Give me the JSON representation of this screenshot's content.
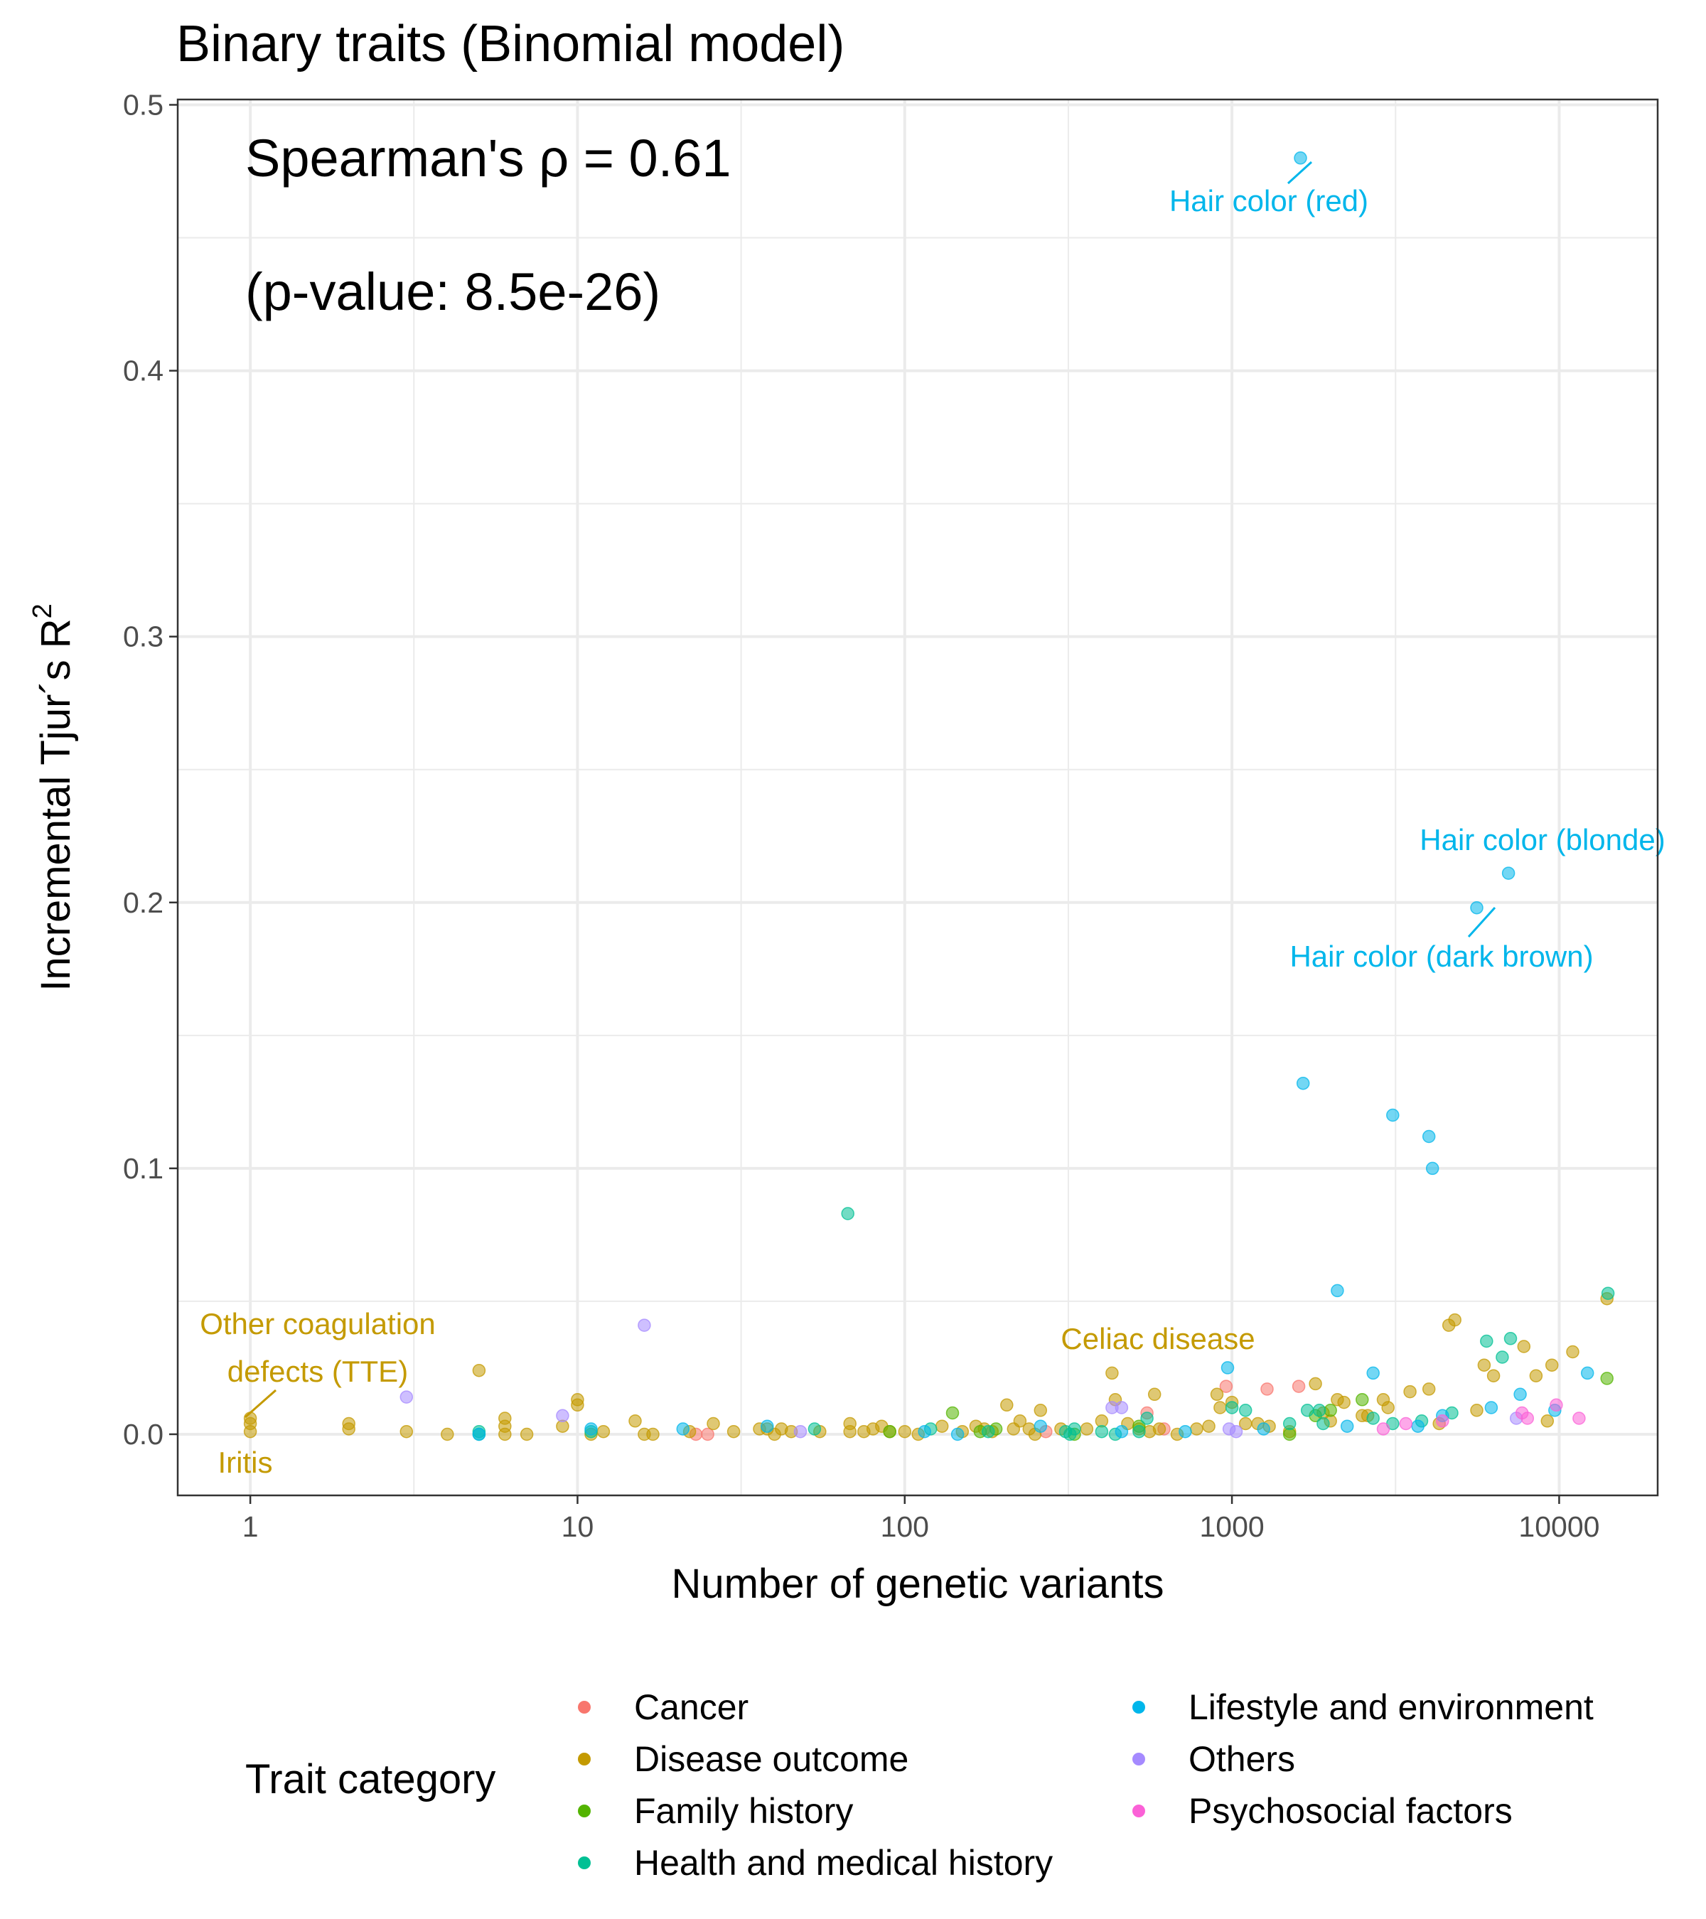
{
  "chart_data": {
    "type": "scatter",
    "title": "Binary traits (Binomial model)",
    "xlabel": "Number of genetic variants",
    "ylabel": "Incremental Tjur´s R",
    "ylabel_superscript": "2",
    "x_scale": "log10",
    "xlim": [
      0.6,
      20000
    ],
    "ylim": [
      -0.023,
      0.502
    ],
    "x_ticks": [
      1,
      10,
      100,
      1000,
      10000
    ],
    "x_tick_labels": [
      "1",
      "10",
      "100",
      "1000",
      "10000"
    ],
    "y_ticks": [
      0,
      0.1,
      0.2,
      0.3,
      0.4,
      0.5
    ],
    "y_tick_labels": [
      "0.0",
      "0.1",
      "0.2",
      "0.3",
      "0.4",
      "0.5"
    ],
    "grid": true,
    "stats": {
      "line1": "Spearman's ρ = 0.61",
      "line2": "(p-value: 8.5e-26)"
    },
    "legend": {
      "title": "Trait category",
      "placement": "bottom"
    },
    "series": [
      {
        "name": "Cancer",
        "color": "#F8766D",
        "points": [
          [
            23,
            0.0
          ],
          [
            25,
            0.0
          ],
          [
            270,
            0.001
          ],
          [
            550,
            0.008
          ],
          [
            620,
            0.002
          ],
          [
            960,
            0.018
          ],
          [
            1280,
            0.017
          ],
          [
            1600,
            0.018
          ]
        ]
      },
      {
        "name": "Disease outcome",
        "color": "#C49A00",
        "points": [
          [
            1,
            0.006
          ],
          [
            1,
            0.004
          ],
          [
            1,
            0.001
          ],
          [
            2,
            0.004
          ],
          [
            2,
            0.002
          ],
          [
            3,
            0.001
          ],
          [
            4,
            0.0
          ],
          [
            5,
            0.024
          ],
          [
            6,
            0.006
          ],
          [
            6,
            0.003
          ],
          [
            6,
            0.0
          ],
          [
            7,
            0.0
          ],
          [
            9,
            0.003
          ],
          [
            10,
            0.013
          ],
          [
            10,
            0.011
          ],
          [
            11,
            0.0
          ],
          [
            12,
            0.001
          ],
          [
            15,
            0.005
          ],
          [
            16,
            0.0
          ],
          [
            17,
            0.0
          ],
          [
            22,
            0.001
          ],
          [
            26,
            0.004
          ],
          [
            30,
            0.001
          ],
          [
            36,
            0.002
          ],
          [
            38,
            0.002
          ],
          [
            40,
            0.0
          ],
          [
            42,
            0.002
          ],
          [
            45,
            0.001
          ],
          [
            55,
            0.001
          ],
          [
            68,
            0.004
          ],
          [
            68,
            0.001
          ],
          [
            75,
            0.001
          ],
          [
            80,
            0.002
          ],
          [
            85,
            0.003
          ],
          [
            90,
            0.001
          ],
          [
            100,
            0.001
          ],
          [
            110,
            0.0
          ],
          [
            130,
            0.003
          ],
          [
            150,
            0.001
          ],
          [
            165,
            0.003
          ],
          [
            175,
            0.002
          ],
          [
            185,
            0.001
          ],
          [
            205,
            0.011
          ],
          [
            215,
            0.002
          ],
          [
            225,
            0.005
          ],
          [
            240,
            0.002
          ],
          [
            250,
            0.0
          ],
          [
            260,
            0.009
          ],
          [
            300,
            0.002
          ],
          [
            360,
            0.002
          ],
          [
            400,
            0.005
          ],
          [
            430,
            0.023
          ],
          [
            440,
            0.013
          ],
          [
            480,
            0.004
          ],
          [
            520,
            0.002
          ],
          [
            560,
            0.001
          ],
          [
            580,
            0.015
          ],
          [
            600,
            0.002
          ],
          [
            680,
            0.0
          ],
          [
            780,
            0.002
          ],
          [
            850,
            0.003
          ],
          [
            900,
            0.015
          ],
          [
            920,
            0.01
          ],
          [
            1000,
            0.012
          ],
          [
            1100,
            0.004
          ],
          [
            1200,
            0.004
          ],
          [
            1300,
            0.003
          ],
          [
            1500,
            0.001
          ],
          [
            1800,
            0.019
          ],
          [
            1900,
            0.008
          ],
          [
            2000,
            0.005
          ],
          [
            2100,
            0.013
          ],
          [
            2200,
            0.012
          ],
          [
            2500,
            0.007
          ],
          [
            2600,
            0.007
          ],
          [
            2900,
            0.013
          ],
          [
            3000,
            0.01
          ],
          [
            3500,
            0.016
          ],
          [
            4000,
            0.017
          ],
          [
            4300,
            0.004
          ],
          [
            4600,
            0.041
          ],
          [
            4800,
            0.043
          ],
          [
            5600,
            0.009
          ],
          [
            5900,
            0.026
          ],
          [
            6300,
            0.022
          ],
          [
            7800,
            0.033
          ],
          [
            8500,
            0.022
          ],
          [
            9200,
            0.005
          ],
          [
            9500,
            0.026
          ],
          [
            11000,
            0.031
          ],
          [
            14000,
            0.051
          ]
        ]
      },
      {
        "name": "Family history",
        "color": "#53B400",
        "points": [
          [
            90,
            0.001
          ],
          [
            140,
            0.008
          ],
          [
            170,
            0.001
          ],
          [
            190,
            0.002
          ],
          [
            330,
            0.0
          ],
          [
            520,
            0.003
          ],
          [
            1500,
            0.0
          ],
          [
            1800,
            0.007
          ],
          [
            2000,
            0.009
          ],
          [
            2500,
            0.013
          ],
          [
            14000,
            0.021
          ]
        ]
      },
      {
        "name": "Health and medical history",
        "color": "#00C094",
        "points": [
          [
            5,
            0.0
          ],
          [
            5,
            0.001
          ],
          [
            11,
            0.001
          ],
          [
            53,
            0.002
          ],
          [
            67,
            0.083
          ],
          [
            120,
            0.002
          ],
          [
            180,
            0.001
          ],
          [
            310,
            0.001
          ],
          [
            320,
            0.0
          ],
          [
            330,
            0.002
          ],
          [
            400,
            0.001
          ],
          [
            440,
            0.0
          ],
          [
            520,
            0.001
          ],
          [
            550,
            0.006
          ],
          [
            1000,
            0.01
          ],
          [
            1100,
            0.009
          ],
          [
            1500,
            0.004
          ],
          [
            1700,
            0.009
          ],
          [
            1850,
            0.009
          ],
          [
            1900,
            0.004
          ],
          [
            2700,
            0.006
          ],
          [
            3100,
            0.004
          ],
          [
            3800,
            0.005
          ],
          [
            4700,
            0.008
          ],
          [
            6000,
            0.035
          ],
          [
            6700,
            0.029
          ],
          [
            7100,
            0.036
          ],
          [
            14100,
            0.053
          ]
        ]
      },
      {
        "name": "Lifestyle and environment",
        "color": "#00B6EB",
        "points": [
          [
            5,
            0.0
          ],
          [
            11,
            0.002
          ],
          [
            21,
            0.002
          ],
          [
            38,
            0.003
          ],
          [
            115,
            0.001
          ],
          [
            145,
            0.0
          ],
          [
            260,
            0.003
          ],
          [
            460,
            0.001
          ],
          [
            720,
            0.001
          ],
          [
            970,
            0.025
          ],
          [
            1250,
            0.002
          ],
          [
            1620,
            0.48
          ],
          [
            1650,
            0.132
          ],
          [
            2100,
            0.054
          ],
          [
            2250,
            0.003
          ],
          [
            2700,
            0.023
          ],
          [
            3100,
            0.12
          ],
          [
            3700,
            0.003
          ],
          [
            4000,
            0.112
          ],
          [
            4100,
            0.1
          ],
          [
            4400,
            0.007
          ],
          [
            5600,
            0.198
          ],
          [
            6200,
            0.01
          ],
          [
            7000,
            0.211
          ],
          [
            7600,
            0.015
          ],
          [
            9700,
            0.009
          ],
          [
            12200,
            0.023
          ]
        ]
      },
      {
        "name": "Others",
        "color": "#A58AFF",
        "points": [
          [
            3,
            0.014
          ],
          [
            9,
            0.007
          ],
          [
            16,
            0.041
          ],
          [
            48,
            0.001
          ],
          [
            430,
            0.01
          ],
          [
            460,
            0.01
          ],
          [
            980,
            0.002
          ],
          [
            1030,
            0.001
          ],
          [
            7400,
            0.006
          ]
        ]
      },
      {
        "name": "Psychosocial factors",
        "color": "#FB61D7",
        "points": [
          [
            2900,
            0.002
          ],
          [
            3400,
            0.004
          ],
          [
            4400,
            0.005
          ],
          [
            7700,
            0.008
          ],
          [
            8000,
            0.006
          ],
          [
            9800,
            0.011
          ],
          [
            11500,
            0.006
          ]
        ]
      }
    ],
    "annotations": [
      {
        "text": "Hair color (red)",
        "category": "Lifestyle and environment"
      },
      {
        "text": "Hair color (blonde)",
        "category": "Lifestyle and environment"
      },
      {
        "text": "Hair color (dark brown)",
        "category": "Lifestyle and environment"
      },
      {
        "text": "Other coagulation",
        "category": "Disease outcome"
      },
      {
        "text": "defects (TTE)",
        "category": "Disease outcome"
      },
      {
        "text": "Celiac disease",
        "category": "Disease outcome"
      },
      {
        "text": "Iritis",
        "category": "Disease outcome"
      }
    ]
  }
}
